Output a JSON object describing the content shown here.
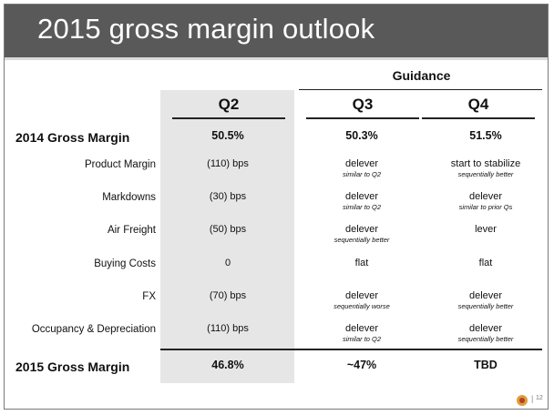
{
  "title": "2015 gross margin outlook",
  "guidance_label": "Guidance",
  "columns": [
    "Q2",
    "Q3",
    "Q4"
  ],
  "rows": [
    {
      "label": "2014 Gross Margin",
      "bold": true,
      "cells": [
        {
          "main": "50.5%",
          "sub": ""
        },
        {
          "main": "50.3%",
          "sub": ""
        },
        {
          "main": "51.5%",
          "sub": ""
        }
      ]
    },
    {
      "label": "Product Margin",
      "bold": false,
      "cells": [
        {
          "main": "(110) bps",
          "sub": ""
        },
        {
          "main": "delever",
          "sub": "similar to Q2"
        },
        {
          "main": "start to stabilize",
          "sub": "sequentially better"
        }
      ]
    },
    {
      "label": "Markdowns",
      "bold": false,
      "cells": [
        {
          "main": "(30) bps",
          "sub": ""
        },
        {
          "main": "delever",
          "sub": "similar to Q2"
        },
        {
          "main": "delever",
          "sub": "similar to prior Qs"
        }
      ]
    },
    {
      "label": "Air Freight",
      "bold": false,
      "cells": [
        {
          "main": "(50) bps",
          "sub": ""
        },
        {
          "main": "delever",
          "sub": "sequentially better"
        },
        {
          "main": "lever",
          "sub": ""
        }
      ]
    },
    {
      "label": "Buying Costs",
      "bold": false,
      "cells": [
        {
          "main": "0",
          "sub": ""
        },
        {
          "main": "flat",
          "sub": ""
        },
        {
          "main": "flat",
          "sub": ""
        }
      ]
    },
    {
      "label": "FX",
      "bold": false,
      "cells": [
        {
          "main": "(70) bps",
          "sub": ""
        },
        {
          "main": "delever",
          "sub": "sequentially worse"
        },
        {
          "main": "delever",
          "sub": "sequentially better"
        }
      ]
    },
    {
      "label": "Occupancy & Depreciation",
      "bold": false,
      "cells": [
        {
          "main": "(110) bps",
          "sub": ""
        },
        {
          "main": "delever",
          "sub": "similar to Q2"
        },
        {
          "main": "delever",
          "sub": "sequentially better"
        }
      ]
    },
    {
      "label": "2015 Gross Margin",
      "bold": true,
      "cells": [
        {
          "main": "46.8%",
          "sub": ""
        },
        {
          "main": "~47%",
          "sub": ""
        },
        {
          "main": "TBD",
          "sub": ""
        }
      ]
    }
  ],
  "footer": {
    "separator": "|",
    "page_number": "12",
    "logo_icon": "lululemon-logo-icon"
  },
  "colors": {
    "title_bar": "#595959",
    "q2_shade": "#e6e6e6",
    "title_text": "#ffffff"
  }
}
